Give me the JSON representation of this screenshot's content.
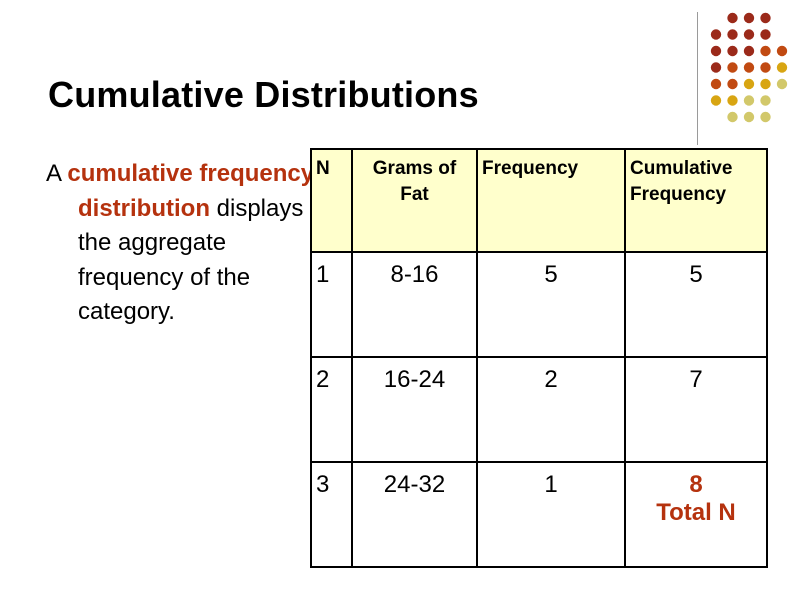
{
  "slide": {
    "title": "Cumulative Distributions",
    "body": {
      "prefix": "A ",
      "highlight": "cumulative frequency distribution",
      "suffix": " displays the aggregate frequency of the category."
    }
  },
  "table": {
    "headers": [
      "N",
      "Grams of Fat",
      "Frequency",
      "Cumulative Frequency"
    ],
    "rows": [
      [
        "1",
        "8-16",
        "5",
        "5"
      ],
      [
        "2",
        "16-24",
        "2",
        "7"
      ],
      [
        "3",
        "24-32",
        "1",
        "8"
      ]
    ],
    "total_label": "Total N"
  },
  "colors": {
    "accent": "#b5320e",
    "header_fill": "#ffffcc",
    "dot_palette": [
      "#9b2a1a",
      "#c14a12",
      "#d8a512",
      "#d2c86a"
    ]
  }
}
